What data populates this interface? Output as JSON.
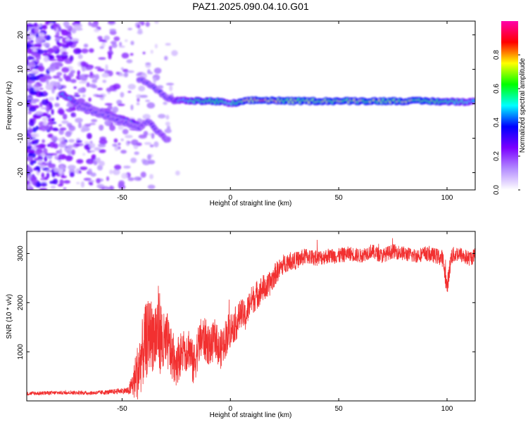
{
  "title": "PAZ1.2025.090.04.10.G01",
  "colorbar": {
    "label": "Normalized spectral amplitude",
    "ticks": [
      "0.0",
      "0.2",
      "0.4",
      "0.6",
      "0.8"
    ],
    "range": [
      0,
      1
    ],
    "colors": [
      "#ffffff",
      "#b48cff",
      "#7a00ff",
      "#0000ff",
      "#00ffff",
      "#00ff00",
      "#ffff00",
      "#ff0000",
      "#ff00aa"
    ]
  },
  "chart_data": [
    {
      "type": "heatmap",
      "xlabel": "Height of straight line (km)",
      "ylabel": "Frequency (Hz)",
      "xlim": [
        -94,
        113
      ],
      "ylim": [
        -25,
        24
      ],
      "xticks": [
        -50,
        0,
        50,
        100
      ],
      "xtick_labels": [
        "-50",
        "0",
        "50",
        "100"
      ],
      "yticks": [
        20,
        10,
        0,
        -10,
        -20
      ],
      "ytick_labels": [
        "20",
        "10",
        "0",
        "-10",
        "-20"
      ],
      "ridges": [
        {
          "x": [
            -78,
            -70,
            -60,
            -52,
            -44,
            -40
          ],
          "y": [
            3,
            0,
            -2,
            -4,
            -6,
            -7
          ],
          "amp": [
            0.5,
            0.35,
            0.3,
            0.4,
            0.55,
            0.3
          ]
        },
        {
          "x": [
            -70,
            -60,
            -52,
            -46,
            -42,
            -38,
            -32,
            -28
          ],
          "y": [
            -1,
            -3,
            -5,
            -6,
            -7,
            -5,
            -9,
            -11
          ],
          "amp": [
            0.3,
            0.3,
            0.3,
            0.3,
            0.3,
            0.3,
            0.25,
            0.2
          ]
        },
        {
          "x": [
            -42,
            -38,
            -34,
            -30,
            -26,
            -22,
            -18,
            -14,
            -10,
            -5,
            0,
            5,
            10,
            15,
            20,
            25,
            30,
            40,
            50,
            60,
            70,
            80,
            90,
            100,
            113
          ],
          "y": [
            7,
            6,
            4,
            2,
            1,
            1,
            0.8,
            0.8,
            0.8,
            0.6,
            0,
            0.5,
            1,
            1,
            1,
            0.8,
            0.8,
            0.8,
            0.8,
            0.8,
            0.8,
            0.8,
            0.8,
            0.6,
            0.6
          ],
          "amp": [
            0.3,
            0.3,
            0.3,
            0.3,
            0.35,
            0.45,
            0.55,
            0.6,
            0.6,
            0.65,
            0.5,
            0.7,
            0.75,
            0.8,
            0.75,
            0.7,
            0.7,
            0.7,
            0.7,
            0.7,
            0.7,
            0.7,
            0.7,
            0.6,
            0.5
          ]
        }
      ]
    },
    {
      "type": "line",
      "xlabel": "Height of straight line (km)",
      "ylabel": "SNR (10 * v/v)",
      "xlim": [
        -94,
        113
      ],
      "ylim": [
        0,
        3450
      ],
      "xticks": [
        -50,
        0,
        50,
        100
      ],
      "xtick_labels": [
        "-50",
        "0",
        "50",
        "100"
      ],
      "yticks": [
        1000,
        2000,
        3000
      ],
      "ytick_labels": [
        "1000",
        "2000",
        "3000"
      ],
      "color": "#f23030",
      "series": [
        {
          "x": [
            -94,
            -85,
            -75,
            -65,
            -55,
            -50,
            -47,
            -45,
            -43,
            -41,
            -39,
            -37,
            -35,
            -33,
            -31,
            -29,
            -27,
            -25,
            -23,
            -21,
            -19,
            -17,
            -15,
            -13,
            -11,
            -9,
            -7,
            -5,
            -3,
            -1,
            1,
            3,
            5,
            7,
            9,
            11,
            13,
            15,
            17,
            19,
            21,
            23,
            25,
            27,
            30,
            35,
            40,
            45,
            50,
            55,
            60,
            65,
            70,
            75,
            80,
            85,
            90,
            95,
            98,
            100,
            102,
            105,
            110,
            113
          ],
          "y": [
            150,
            160,
            170,
            160,
            180,
            210,
            200,
            350,
            550,
            900,
            1200,
            1400,
            1300,
            1500,
            1100,
            1200,
            900,
            800,
            950,
            1000,
            1100,
            700,
            1100,
            1300,
            1200,
            1100,
            1300,
            1000,
            1200,
            1400,
            1500,
            1600,
            1800,
            1700,
            2000,
            2100,
            2200,
            2300,
            2300,
            2450,
            2600,
            2700,
            2800,
            2850,
            2850,
            2950,
            2900,
            2950,
            2950,
            3000,
            2950,
            3050,
            2950,
            3050,
            3000,
            2950,
            3000,
            2950,
            2900,
            2300,
            2950,
            3000,
            2900,
            2950
          ],
          "noise": [
            40,
            40,
            40,
            40,
            50,
            60,
            80,
            300,
            600,
            700,
            800,
            700,
            800,
            900,
            700,
            600,
            500,
            500,
            450,
            450,
            450,
            450,
            450,
            450,
            450,
            400,
            400,
            400,
            400,
            400,
            350,
            350,
            300,
            300,
            300,
            300,
            300,
            280,
            260,
            250,
            230,
            210,
            200,
            200,
            180,
            170,
            160,
            160,
            160,
            150,
            150,
            150,
            150,
            150,
            150,
            150,
            150,
            160,
            180,
            200,
            180,
            160,
            160,
            160
          ]
        }
      ]
    }
  ]
}
